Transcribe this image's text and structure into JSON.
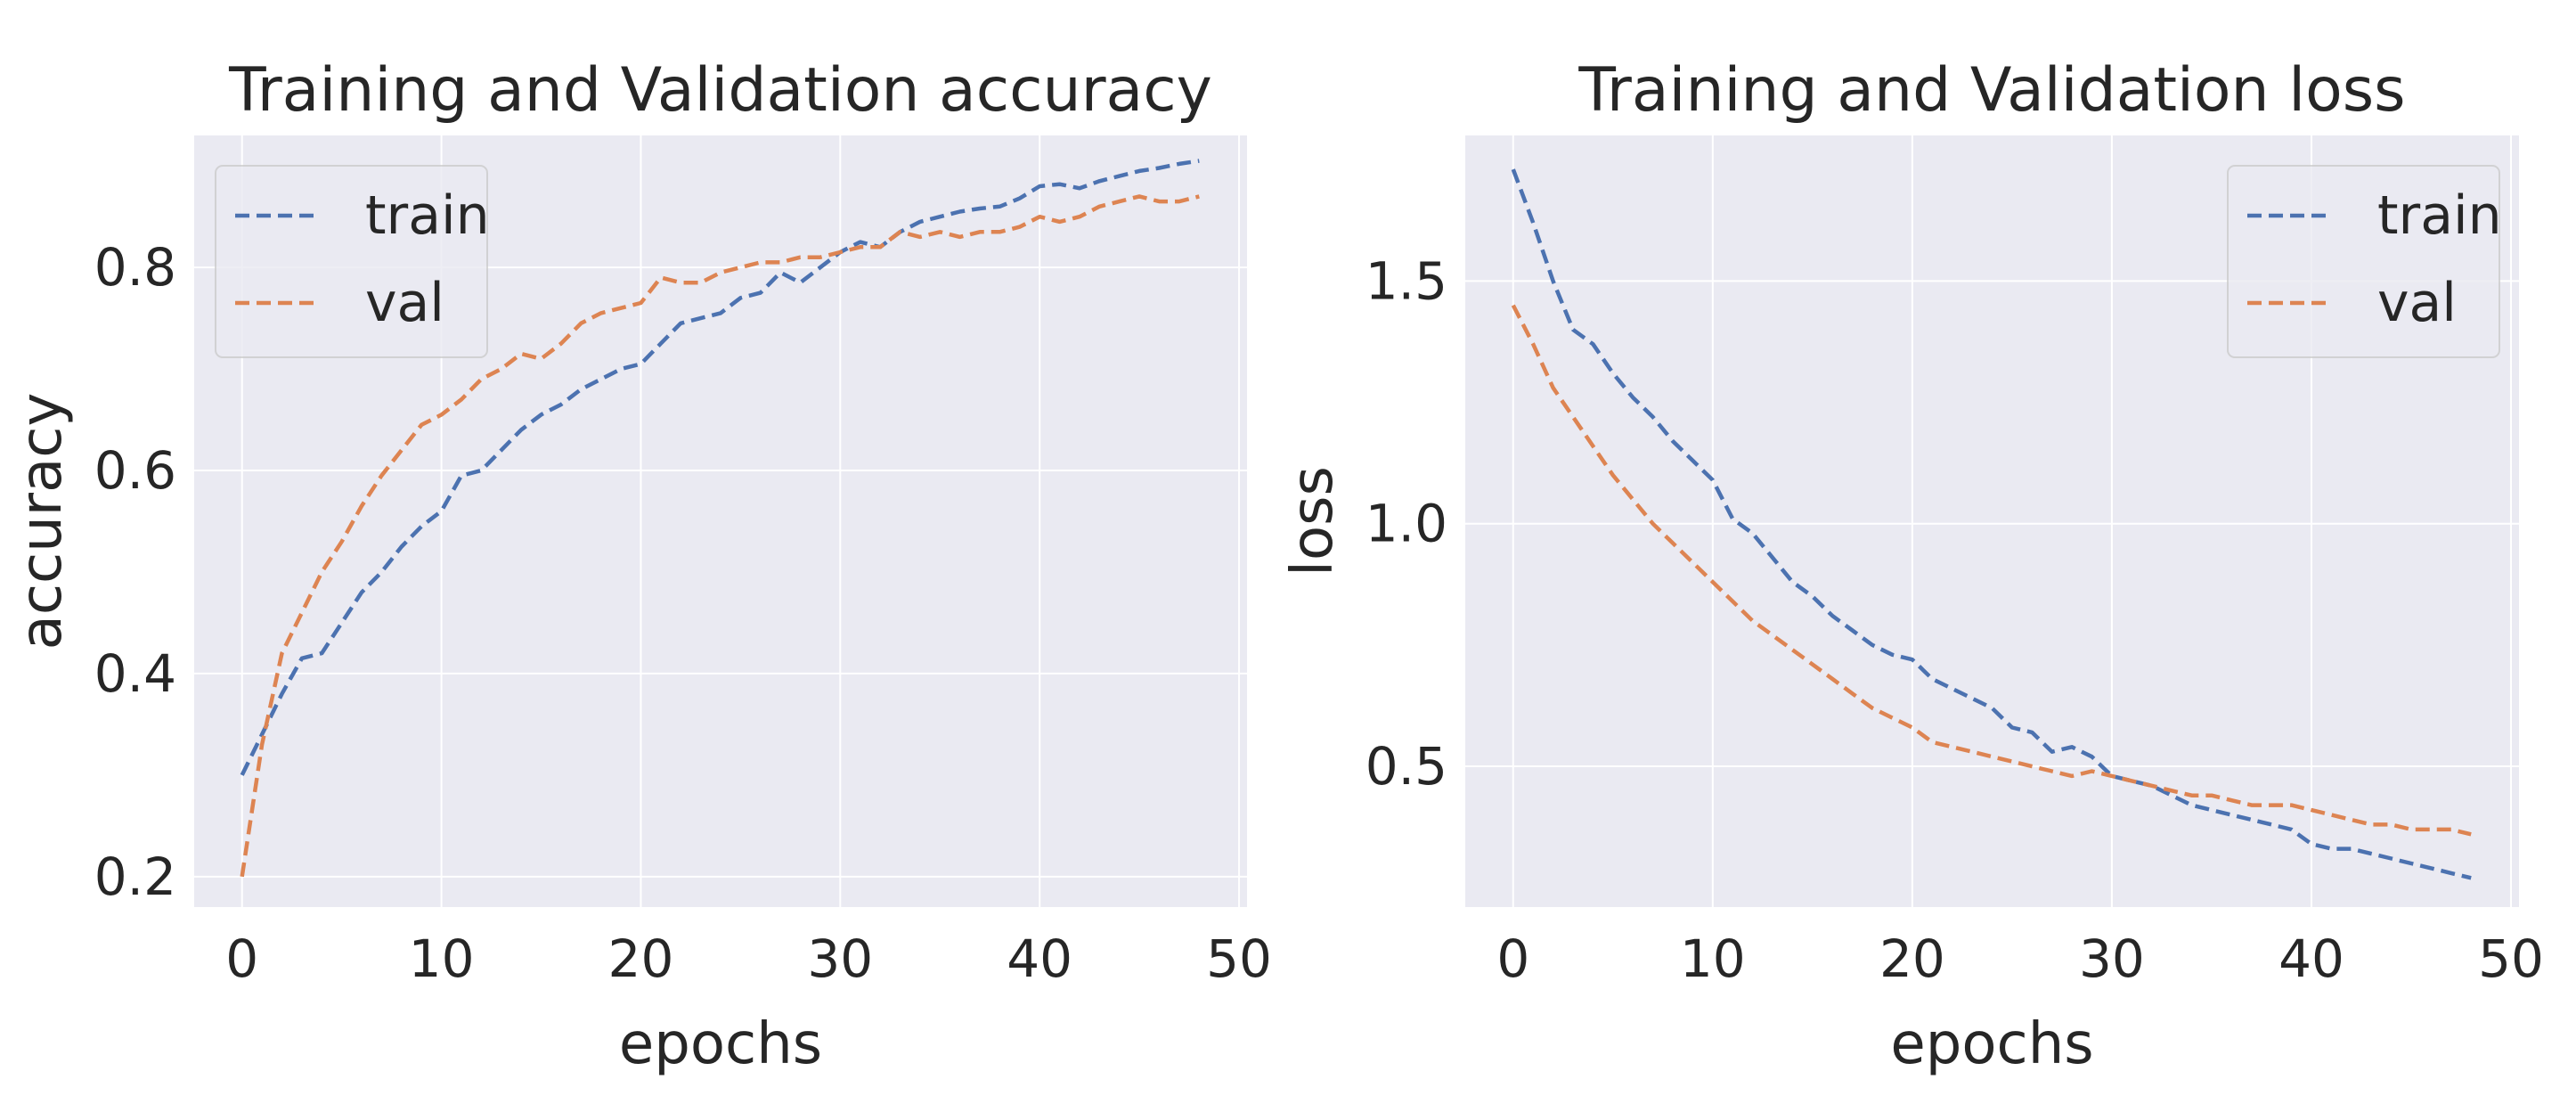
{
  "chart_data": [
    {
      "type": "line",
      "title": "Training and Validation accuracy",
      "xlabel": "epochs",
      "ylabel": "accuracy",
      "xlim": [
        -2.4,
        50.4
      ],
      "ylim": [
        0.17,
        0.93
      ],
      "xticks": [
        0,
        10,
        20,
        30,
        40,
        50
      ],
      "xtick_labels": [
        "0",
        "10",
        "20",
        "30",
        "40",
        "50"
      ],
      "yticks": [
        0.2,
        0.4,
        0.6,
        0.8
      ],
      "ytick_labels": [
        "0.2",
        "0.4",
        "0.6",
        "0.8"
      ],
      "grid": true,
      "legend_position": "upper left",
      "x": [
        0,
        1,
        2,
        3,
        4,
        5,
        6,
        7,
        8,
        9,
        10,
        11,
        12,
        13,
        14,
        15,
        16,
        17,
        18,
        19,
        20,
        21,
        22,
        23,
        24,
        25,
        26,
        27,
        28,
        29,
        30,
        31,
        32,
        33,
        34,
        35,
        36,
        37,
        38,
        39,
        40,
        41,
        42,
        43,
        44,
        45,
        46,
        47,
        48
      ],
      "series": [
        {
          "name": "train",
          "color": "#4c72b0",
          "values": [
            0.3,
            0.34,
            0.38,
            0.415,
            0.42,
            0.45,
            0.48,
            0.5,
            0.525,
            0.545,
            0.56,
            0.595,
            0.6,
            0.62,
            0.64,
            0.655,
            0.665,
            0.68,
            0.69,
            0.7,
            0.705,
            0.725,
            0.745,
            0.75,
            0.755,
            0.77,
            0.775,
            0.795,
            0.785,
            0.8,
            0.815,
            0.825,
            0.82,
            0.835,
            0.845,
            0.85,
            0.855,
            0.858,
            0.86,
            0.868,
            0.88,
            0.882,
            0.878,
            0.885,
            0.89,
            0.895,
            0.898,
            0.902,
            0.905
          ]
        },
        {
          "name": "val",
          "color": "#dd8452",
          "values": [
            0.2,
            0.33,
            0.42,
            0.46,
            0.5,
            0.53,
            0.565,
            0.595,
            0.62,
            0.645,
            0.655,
            0.67,
            0.69,
            0.7,
            0.715,
            0.71,
            0.725,
            0.745,
            0.755,
            0.76,
            0.765,
            0.79,
            0.785,
            0.785,
            0.795,
            0.8,
            0.805,
            0.805,
            0.81,
            0.81,
            0.815,
            0.82,
            0.82,
            0.835,
            0.83,
            0.835,
            0.83,
            0.835,
            0.835,
            0.84,
            0.85,
            0.845,
            0.85,
            0.86,
            0.865,
            0.87,
            0.865,
            0.865,
            0.87
          ]
        }
      ]
    },
    {
      "type": "line",
      "title": "Training and Validation loss",
      "xlabel": "epochs",
      "ylabel": "loss",
      "xlim": [
        -2.4,
        50.4
      ],
      "ylim": [
        0.21,
        1.8
      ],
      "xticks": [
        0,
        10,
        20,
        30,
        40,
        50
      ],
      "xtick_labels": [
        "0",
        "10",
        "20",
        "30",
        "40",
        "50"
      ],
      "yticks": [
        0.5,
        1.0,
        1.5
      ],
      "ytick_labels": [
        "0.5",
        "1.0",
        "1.5"
      ],
      "grid": true,
      "legend_position": "upper right",
      "x": [
        0,
        1,
        2,
        3,
        4,
        5,
        6,
        7,
        8,
        9,
        10,
        11,
        12,
        13,
        14,
        15,
        16,
        17,
        18,
        19,
        20,
        21,
        22,
        23,
        24,
        25,
        26,
        27,
        28,
        29,
        30,
        31,
        32,
        33,
        34,
        35,
        36,
        37,
        38,
        39,
        40,
        41,
        42,
        43,
        44,
        45,
        46,
        47,
        48
      ],
      "series": [
        {
          "name": "train",
          "color": "#4c72b0",
          "values": [
            1.73,
            1.62,
            1.5,
            1.4,
            1.37,
            1.31,
            1.26,
            1.22,
            1.17,
            1.13,
            1.09,
            1.01,
            0.98,
            0.93,
            0.88,
            0.85,
            0.81,
            0.78,
            0.75,
            0.73,
            0.72,
            0.68,
            0.66,
            0.64,
            0.62,
            0.58,
            0.57,
            0.53,
            0.54,
            0.52,
            0.48,
            0.47,
            0.46,
            0.44,
            0.42,
            0.41,
            0.4,
            0.39,
            0.38,
            0.37,
            0.34,
            0.33,
            0.33,
            0.32,
            0.31,
            0.3,
            0.29,
            0.28,
            0.27
          ]
        },
        {
          "name": "val",
          "color": "#dd8452",
          "values": [
            1.45,
            1.37,
            1.28,
            1.22,
            1.16,
            1.1,
            1.05,
            1.0,
            0.96,
            0.92,
            0.88,
            0.84,
            0.8,
            0.77,
            0.74,
            0.71,
            0.68,
            0.65,
            0.62,
            0.6,
            0.58,
            0.55,
            0.54,
            0.53,
            0.52,
            0.51,
            0.5,
            0.49,
            0.48,
            0.49,
            0.48,
            0.47,
            0.46,
            0.45,
            0.44,
            0.44,
            0.43,
            0.42,
            0.42,
            0.42,
            0.41,
            0.4,
            0.39,
            0.38,
            0.38,
            0.37,
            0.37,
            0.37,
            0.36
          ]
        }
      ]
    }
  ]
}
